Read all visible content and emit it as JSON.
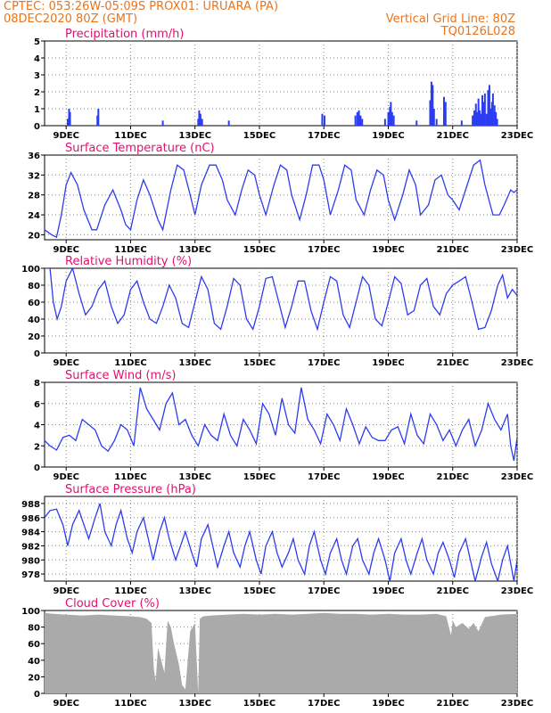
{
  "header": {
    "line1": "CPTEC:   053:26W-05:09S   PROX01: URUARA (PA)",
    "line2": "08DEC2020 80Z (GMT)",
    "grid_note": "Vertical Grid Line: 80Z",
    "run_id": "TQ0126L028"
  },
  "colors": {
    "header": "#e8741c",
    "panel_title": "#e0116e",
    "series": "#2c3cf0",
    "cloud": "#aaaaaa",
    "grid": "#888888"
  },
  "x_axis": {
    "start_day": 8.33,
    "end_day": 23,
    "ticks": [
      {
        "day": 9,
        "label": "9DEC"
      },
      {
        "day": 11,
        "label": "11DEC"
      },
      {
        "day": 13,
        "label": "13DEC"
      },
      {
        "day": 15,
        "label": "15DEC"
      },
      {
        "day": 17,
        "label": "17DEC"
      },
      {
        "day": 19,
        "label": "19DEC"
      },
      {
        "day": 21,
        "label": "21DEC"
      },
      {
        "day": 23,
        "label": "23DEC"
      }
    ]
  },
  "chart_data": [
    {
      "type": "bar",
      "title": "Precipitation (mm/h)",
      "ylim": [
        0,
        5
      ],
      "yticks": [
        0,
        1,
        2,
        3,
        4,
        5
      ],
      "series": [
        {
          "x": [
            9.05,
            9.09,
            9.12,
            9.97,
            10.0,
            12.0,
            13.1,
            13.13,
            13.17,
            13.22,
            14.05,
            16.95,
            17.02,
            17.98,
            18.04,
            18.09,
            18.14,
            18.19,
            18.9,
            19.0,
            19.05,
            19.08,
            19.12,
            19.17,
            19.88,
            20.3,
            20.34,
            20.38,
            20.42,
            20.5,
            20.73,
            20.78,
            21.28,
            21.62,
            21.67,
            21.72,
            21.76,
            21.8,
            21.84,
            21.88,
            21.92,
            21.97,
            22.0,
            22.05,
            22.1,
            22.14,
            22.18,
            22.22,
            22.25,
            22.3,
            22.34,
            22.38
          ],
          "values": [
            0.4,
            1.0,
            0.8,
            0.6,
            1.0,
            0.3,
            0.4,
            0.9,
            0.7,
            0.4,
            0.3,
            0.7,
            0.6,
            0.6,
            0.8,
            0.9,
            0.6,
            0.4,
            0.4,
            0.8,
            1.1,
            1.4,
            0.8,
            0.6,
            0.3,
            1.5,
            2.6,
            2.4,
            1.0,
            0.4,
            1.7,
            1.4,
            0.3,
            0.6,
            0.9,
            1.3,
            0.8,
            1.6,
            0.9,
            0.7,
            1.8,
            1.4,
            1.9,
            0.7,
            2.1,
            2.4,
            1.0,
            1.4,
            1.9,
            1.2,
            0.8,
            0.4
          ]
        }
      ]
    },
    {
      "type": "line",
      "title": "Surface Temperature (nC)",
      "ylim": [
        19,
        36
      ],
      "yticks": [
        20,
        24,
        28,
        32,
        36
      ],
      "series": [
        {
          "x": [
            8.33,
            8.55,
            8.7,
            8.85,
            9.0,
            9.15,
            9.35,
            9.55,
            9.8,
            9.95,
            10.2,
            10.45,
            10.7,
            10.85,
            11.0,
            11.2,
            11.4,
            11.6,
            11.85,
            12.0,
            12.25,
            12.45,
            12.65,
            12.85,
            13.0,
            13.2,
            13.45,
            13.65,
            13.85,
            14.0,
            14.25,
            14.45,
            14.65,
            14.85,
            15.0,
            15.2,
            15.45,
            15.65,
            15.85,
            16.0,
            16.25,
            16.45,
            16.65,
            16.85,
            17.0,
            17.2,
            17.45,
            17.65,
            17.85,
            18.0,
            18.25,
            18.45,
            18.65,
            18.85,
            19.0,
            19.2,
            19.45,
            19.65,
            19.85,
            20.0,
            20.25,
            20.45,
            20.65,
            20.85,
            21.0,
            21.2,
            21.45,
            21.65,
            21.85,
            22.0,
            22.25,
            22.45,
            22.6,
            22.8,
            22.9,
            23.0
          ],
          "values": [
            21,
            20,
            19.5,
            24,
            30,
            32.5,
            30,
            25,
            21,
            21,
            26,
            29,
            25,
            22,
            21,
            27,
            31,
            28,
            23,
            21,
            29,
            34,
            33,
            28,
            24,
            30,
            34,
            34,
            31,
            27,
            24,
            29,
            33,
            32,
            28,
            24,
            30,
            34,
            33,
            28,
            23,
            28,
            34,
            34,
            31,
            24,
            29,
            34,
            33,
            27,
            24,
            29,
            33,
            32,
            27,
            23,
            28,
            33,
            30,
            24,
            26,
            31,
            32,
            28,
            27,
            25,
            30,
            34,
            35,
            30,
            24,
            24,
            26,
            29,
            28.5,
            29
          ]
        }
      ]
    },
    {
      "type": "line",
      "title": "Relative Humidity (%)",
      "ylim": [
        0,
        100
      ],
      "yticks": [
        0,
        20,
        40,
        60,
        80,
        100
      ],
      "series": [
        {
          "x": [
            8.33,
            8.5,
            8.6,
            8.72,
            8.85,
            9.0,
            9.2,
            9.4,
            9.6,
            9.8,
            10.0,
            10.2,
            10.4,
            10.6,
            10.8,
            11.0,
            11.2,
            11.4,
            11.6,
            11.8,
            12.0,
            12.2,
            12.4,
            12.6,
            12.8,
            13.0,
            13.2,
            13.4,
            13.6,
            13.8,
            14.0,
            14.2,
            14.4,
            14.6,
            14.8,
            15.0,
            15.2,
            15.4,
            15.6,
            15.8,
            16.0,
            16.2,
            16.4,
            16.6,
            16.8,
            17.0,
            17.2,
            17.4,
            17.6,
            17.8,
            18.0,
            18.2,
            18.4,
            18.6,
            18.8,
            19.0,
            19.2,
            19.4,
            19.6,
            19.8,
            20.0,
            20.2,
            20.4,
            20.6,
            20.8,
            21.0,
            21.2,
            21.4,
            21.6,
            21.8,
            22.0,
            22.2,
            22.4,
            22.55,
            22.7,
            22.85,
            23.0
          ],
          "values": [
            100,
            100,
            60,
            40,
            55,
            85,
            100,
            70,
            45,
            55,
            75,
            85,
            55,
            35,
            45,
            75,
            85,
            60,
            40,
            35,
            55,
            80,
            65,
            35,
            30,
            60,
            90,
            75,
            35,
            28,
            55,
            88,
            80,
            40,
            28,
            55,
            88,
            90,
            60,
            30,
            55,
            85,
            85,
            50,
            28,
            60,
            90,
            85,
            45,
            30,
            60,
            90,
            80,
            40,
            32,
            60,
            90,
            82,
            45,
            50,
            80,
            88,
            55,
            45,
            70,
            80,
            85,
            90,
            60,
            28,
            30,
            50,
            80,
            92,
            65,
            75,
            68
          ]
        }
      ]
    },
    {
      "type": "line",
      "title": "Surface Wind (m/s)",
      "ylim": [
        0,
        8
      ],
      "yticks": [
        0,
        2,
        4,
        6,
        8
      ],
      "series": [
        {
          "x": [
            8.33,
            8.5,
            8.7,
            8.9,
            9.1,
            9.3,
            9.5,
            9.7,
            9.9,
            10.1,
            10.3,
            10.5,
            10.7,
            10.9,
            11.1,
            11.3,
            11.5,
            11.7,
            11.9,
            12.1,
            12.3,
            12.5,
            12.7,
            12.9,
            13.1,
            13.3,
            13.5,
            13.7,
            13.9,
            14.1,
            14.3,
            14.5,
            14.7,
            14.9,
            15.1,
            15.3,
            15.5,
            15.7,
            15.9,
            16.1,
            16.3,
            16.5,
            16.7,
            16.9,
            17.1,
            17.3,
            17.5,
            17.7,
            17.9,
            18.1,
            18.3,
            18.5,
            18.7,
            18.9,
            19.1,
            19.3,
            19.5,
            19.7,
            19.9,
            20.1,
            20.3,
            20.5,
            20.7,
            20.9,
            21.1,
            21.3,
            21.5,
            21.7,
            21.9,
            22.1,
            22.3,
            22.5,
            22.7,
            22.8,
            22.9,
            23.0
          ],
          "values": [
            2.5,
            2,
            1.6,
            2.8,
            3,
            2.5,
            4.5,
            4,
            3.5,
            2,
            1.5,
            2.5,
            4,
            3.5,
            2,
            7.5,
            5.5,
            4.5,
            3.5,
            6,
            7,
            4,
            4.5,
            3,
            2,
            4,
            3,
            2.5,
            5,
            3,
            2,
            4.5,
            3.5,
            2.2,
            6,
            5,
            3,
            6.5,
            4,
            3.2,
            7.5,
            4.5,
            3.5,
            2.2,
            5,
            4,
            2.5,
            5.5,
            4,
            2.2,
            3.8,
            2.8,
            2.5,
            2.5,
            3.5,
            3.8,
            2.2,
            5,
            3,
            2.2,
            5,
            4,
            2.5,
            3.5,
            2,
            3.5,
            4.5,
            2,
            3.5,
            6,
            4.5,
            3.5,
            5,
            2,
            0.6,
            2.8
          ]
        }
      ]
    },
    {
      "type": "line",
      "title": "Surface Pressure (hPa)",
      "ylim": [
        977,
        989
      ],
      "yticks": [
        978,
        980,
        982,
        984,
        986,
        988
      ],
      "series": [
        {
          "x": [
            8.33,
            8.5,
            8.7,
            8.9,
            9.05,
            9.2,
            9.4,
            9.55,
            9.7,
            9.9,
            10.05,
            10.2,
            10.4,
            10.55,
            10.7,
            10.9,
            11.05,
            11.2,
            11.4,
            11.55,
            11.7,
            11.9,
            12.05,
            12.2,
            12.4,
            12.55,
            12.7,
            12.9,
            13.05,
            13.2,
            13.4,
            13.55,
            13.7,
            13.9,
            14.05,
            14.2,
            14.4,
            14.55,
            14.7,
            14.9,
            15.05,
            15.2,
            15.4,
            15.55,
            15.7,
            15.9,
            16.05,
            16.2,
            16.4,
            16.55,
            16.7,
            16.9,
            17.05,
            17.2,
            17.4,
            17.55,
            17.7,
            17.9,
            18.05,
            18.2,
            18.4,
            18.55,
            18.7,
            18.9,
            19.05,
            19.2,
            19.4,
            19.55,
            19.7,
            19.9,
            20.05,
            20.2,
            20.4,
            20.55,
            20.7,
            20.9,
            21.05,
            21.2,
            21.4,
            21.55,
            21.7,
            21.9,
            22.05,
            22.2,
            22.4,
            22.55,
            22.7,
            22.9,
            23.0
          ],
          "values": [
            986,
            987,
            987.2,
            985,
            982,
            985,
            987,
            985,
            983,
            986,
            988,
            984,
            982,
            985,
            987,
            983,
            981,
            984,
            986,
            983,
            980,
            984,
            986,
            983,
            980,
            982,
            984,
            981,
            979,
            983,
            985,
            982,
            979,
            982,
            984,
            981,
            979,
            982,
            984,
            980,
            978,
            982,
            984,
            981,
            979,
            981,
            983,
            980,
            978,
            982,
            984,
            980,
            978,
            981,
            983,
            980,
            978,
            982,
            983,
            980,
            978,
            981,
            983,
            980,
            977,
            981,
            983,
            980,
            978,
            981,
            983,
            980,
            978,
            981,
            982.5,
            980,
            977.5,
            981,
            983,
            980,
            977,
            980.5,
            982.5,
            979.5,
            977,
            980,
            982,
            977,
            980
          ]
        }
      ]
    },
    {
      "type": "area",
      "title": "Cloud Cover (%)",
      "ylim": [
        0,
        100
      ],
      "yticks": [
        0,
        20,
        40,
        60,
        80,
        100
      ],
      "series": [
        {
          "x": [
            8.33,
            8.6,
            9.0,
            9.5,
            10.0,
            10.5,
            11.0,
            11.3,
            11.5,
            11.65,
            11.72,
            11.78,
            11.85,
            11.95,
            12.05,
            12.15,
            12.25,
            12.35,
            12.5,
            12.6,
            12.7,
            12.85,
            13.0,
            13.1,
            13.15,
            13.25,
            13.5,
            14.0,
            14.5,
            15.0,
            15.5,
            16.0,
            16.5,
            17.0,
            17.5,
            18.0,
            18.5,
            19.0,
            19.5,
            20.0,
            20.5,
            20.8,
            20.95,
            21.0,
            21.1,
            21.3,
            21.5,
            21.65,
            21.8,
            22.0,
            22.5,
            23.0
          ],
          "values": [
            97,
            96,
            95,
            94,
            95,
            94,
            93,
            92,
            90,
            85,
            30,
            15,
            55,
            40,
            25,
            88,
            80,
            60,
            35,
            10,
            5,
            75,
            85,
            0,
            90,
            93,
            94,
            95,
            96,
            95,
            96,
            95,
            96,
            97,
            96,
            96,
            95,
            96,
            95,
            95,
            96,
            93,
            70,
            88,
            80,
            85,
            78,
            85,
            75,
            92,
            95,
            96
          ]
        }
      ]
    }
  ]
}
